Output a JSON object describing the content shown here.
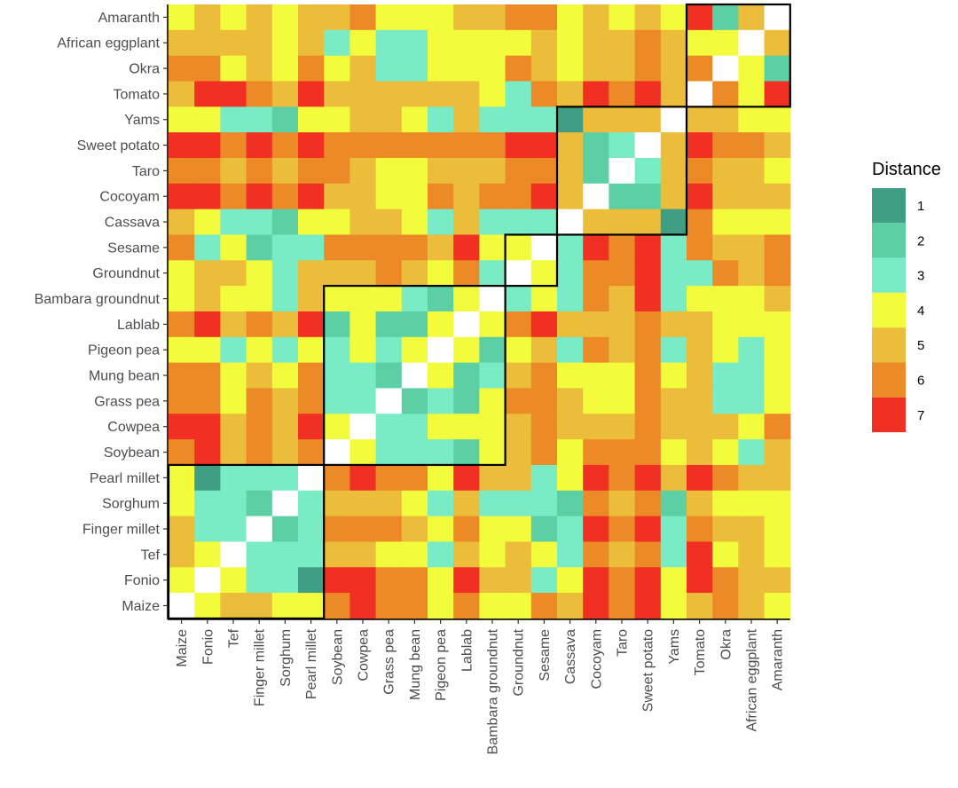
{
  "chart_data": {
    "type": "heatmap",
    "title": "",
    "legend": {
      "title": "Distance",
      "placement": "right"
    },
    "crops_x": [
      "Maize",
      "Fonio",
      "Tef",
      "Finger millet",
      "Sorghum",
      "Pearl millet",
      "Soybean",
      "Cowpea",
      "Grass pea",
      "Mung bean",
      "Pigeon pea",
      "Lablab",
      "Bambara groundnut",
      "Groundnut",
      "Sesame",
      "Cassava",
      "Cocoyam",
      "Taro",
      "Sweet potato",
      "Yams",
      "Tomato",
      "Okra",
      "African eggplant",
      "Amaranth"
    ],
    "crops_y_top_to_bottom": [
      "Amaranth",
      "African eggplant",
      "Okra",
      "Tomato",
      "Yams",
      "Sweet potato",
      "Taro",
      "Cocoyam",
      "Cassava",
      "Sesame",
      "Groundnut",
      "Bambara groundnut",
      "Lablab",
      "Pigeon pea",
      "Mung bean",
      "Grass pea",
      "Cowpea",
      "Soybean",
      "Pearl millet",
      "Sorghum",
      "Finger millet",
      "Tef",
      "Fonio",
      "Maize"
    ],
    "colorscale": [
      {
        "value": 1,
        "color": "#3f9e84"
      },
      {
        "value": 2,
        "color": "#5ccfa5"
      },
      {
        "value": 3,
        "color": "#79ebc5"
      },
      {
        "value": 4,
        "color": "#f2fb3c"
      },
      {
        "value": 5,
        "color": "#ebbd3a"
      },
      {
        "value": 6,
        "color": "#ec8a27"
      },
      {
        "value": 7,
        "color": "#f03022"
      }
    ],
    "diagonal_color": "#ffffff",
    "cluster_groups": [
      [
        "Maize",
        "Fonio",
        "Tef",
        "Finger millet",
        "Sorghum",
        "Pearl millet"
      ],
      [
        "Soybean",
        "Cowpea",
        "Grass pea",
        "Mung bean",
        "Pigeon pea",
        "Lablab",
        "Bambara groundnut"
      ],
      [
        "Groundnut",
        "Sesame"
      ],
      [
        "Cassava",
        "Cocoyam",
        "Taro",
        "Sweet potato",
        "Yams"
      ],
      [
        "Tomato",
        "Okra",
        "African eggplant",
        "Amaranth"
      ]
    ],
    "values_rows_top_to_bottom": [
      [
        4,
        5,
        4,
        5,
        4,
        5,
        5,
        6,
        4,
        4,
        4,
        5,
        5,
        6,
        6,
        4,
        5,
        4,
        5,
        4,
        7,
        2,
        5,
        0
      ],
      [
        5,
        5,
        5,
        5,
        4,
        5,
        3,
        4,
        3,
        3,
        4,
        4,
        4,
        4,
        5,
        4,
        5,
        5,
        6,
        5,
        4,
        4,
        0,
        5
      ],
      [
        6,
        6,
        4,
        5,
        4,
        6,
        4,
        5,
        3,
        3,
        4,
        4,
        4,
        6,
        5,
        4,
        5,
        5,
        6,
        5,
        6,
        0,
        4,
        2
      ],
      [
        5,
        7,
        7,
        6,
        5,
        7,
        5,
        5,
        5,
        5,
        5,
        5,
        4,
        3,
        6,
        5,
        7,
        6,
        7,
        5,
        0,
        6,
        4,
        7
      ],
      [
        4,
        4,
        3,
        3,
        2,
        4,
        4,
        5,
        5,
        4,
        3,
        5,
        3,
        3,
        3,
        1,
        5,
        5,
        5,
        0,
        5,
        5,
        4,
        4
      ],
      [
        7,
        7,
        6,
        7,
        6,
        7,
        6,
        6,
        6,
        6,
        6,
        6,
        6,
        7,
        7,
        5,
        2,
        3,
        0,
        5,
        7,
        6,
        6,
        5
      ],
      [
        6,
        6,
        5,
        6,
        5,
        6,
        6,
        5,
        4,
        4,
        5,
        5,
        5,
        6,
        6,
        5,
        2,
        0,
        3,
        5,
        6,
        5,
        5,
        4
      ],
      [
        7,
        7,
        6,
        7,
        6,
        7,
        5,
        5,
        4,
        4,
        6,
        5,
        6,
        6,
        7,
        5,
        0,
        2,
        2,
        5,
        7,
        5,
        5,
        5
      ],
      [
        5,
        4,
        3,
        3,
        2,
        4,
        4,
        5,
        5,
        4,
        3,
        5,
        3,
        3,
        3,
        0,
        5,
        5,
        5,
        1,
        6,
        4,
        4,
        4
      ],
      [
        6,
        3,
        4,
        2,
        3,
        3,
        6,
        6,
        6,
        6,
        5,
        7,
        4,
        4,
        0,
        3,
        7,
        6,
        7,
        3,
        6,
        5,
        5,
        6
      ],
      [
        4,
        5,
        5,
        4,
        3,
        5,
        5,
        5,
        6,
        5,
        4,
        6,
        3,
        0,
        4,
        3,
        6,
        6,
        7,
        3,
        3,
        6,
        5,
        6
      ],
      [
        4,
        5,
        4,
        4,
        3,
        5,
        4,
        4,
        4,
        3,
        2,
        4,
        0,
        3,
        4,
        3,
        6,
        5,
        7,
        3,
        4,
        4,
        4,
        5
      ],
      [
        6,
        7,
        5,
        6,
        5,
        7,
        2,
        4,
        2,
        2,
        4,
        0,
        4,
        6,
        7,
        5,
        5,
        5,
        6,
        5,
        5,
        4,
        4,
        4
      ],
      [
        4,
        4,
        3,
        4,
        3,
        4,
        3,
        4,
        3,
        4,
        0,
        4,
        2,
        4,
        5,
        3,
        6,
        5,
        6,
        3,
        5,
        4,
        3,
        4
      ],
      [
        6,
        6,
        4,
        5,
        4,
        6,
        3,
        3,
        2,
        0,
        4,
        2,
        3,
        5,
        6,
        4,
        4,
        4,
        6,
        4,
        5,
        3,
        3,
        4
      ],
      [
        6,
        6,
        4,
        6,
        5,
        6,
        3,
        3,
        0,
        2,
        3,
        2,
        4,
        6,
        6,
        5,
        4,
        4,
        6,
        5,
        5,
        3,
        3,
        4
      ],
      [
        7,
        7,
        5,
        6,
        5,
        7,
        4,
        0,
        3,
        3,
        4,
        4,
        4,
        5,
        6,
        5,
        5,
        5,
        6,
        5,
        5,
        5,
        4,
        6
      ],
      [
        6,
        7,
        5,
        6,
        5,
        6,
        0,
        4,
        3,
        3,
        3,
        2,
        4,
        5,
        6,
        4,
        6,
        6,
        6,
        4,
        5,
        4,
        3,
        5
      ],
      [
        4,
        1,
        3,
        3,
        3,
        0,
        6,
        7,
        6,
        6,
        4,
        7,
        5,
        5,
        3,
        4,
        7,
        6,
        7,
        5,
        7,
        6,
        5,
        5
      ],
      [
        4,
        3,
        3,
        2,
        0,
        3,
        5,
        5,
        5,
        4,
        3,
        5,
        3,
        3,
        3,
        2,
        6,
        5,
        6,
        2,
        5,
        4,
        4,
        4
      ],
      [
        5,
        3,
        3,
        0,
        2,
        3,
        6,
        6,
        6,
        5,
        4,
        6,
        4,
        4,
        2,
        3,
        7,
        6,
        7,
        3,
        6,
        5,
        5,
        4
      ],
      [
        5,
        4,
        0,
        3,
        3,
        3,
        5,
        5,
        4,
        4,
        3,
        5,
        4,
        5,
        4,
        3,
        6,
        5,
        6,
        3,
        7,
        4,
        5,
        4
      ],
      [
        4,
        0,
        4,
        3,
        3,
        1,
        7,
        7,
        6,
        6,
        4,
        7,
        5,
        5,
        3,
        4,
        7,
        6,
        7,
        4,
        7,
        6,
        5,
        5
      ],
      [
        0,
        4,
        5,
        5,
        4,
        4,
        6,
        7,
        6,
        6,
        4,
        6,
        4,
        4,
        6,
        5,
        7,
        6,
        7,
        4,
        5,
        6,
        5,
        4
      ]
    ]
  }
}
